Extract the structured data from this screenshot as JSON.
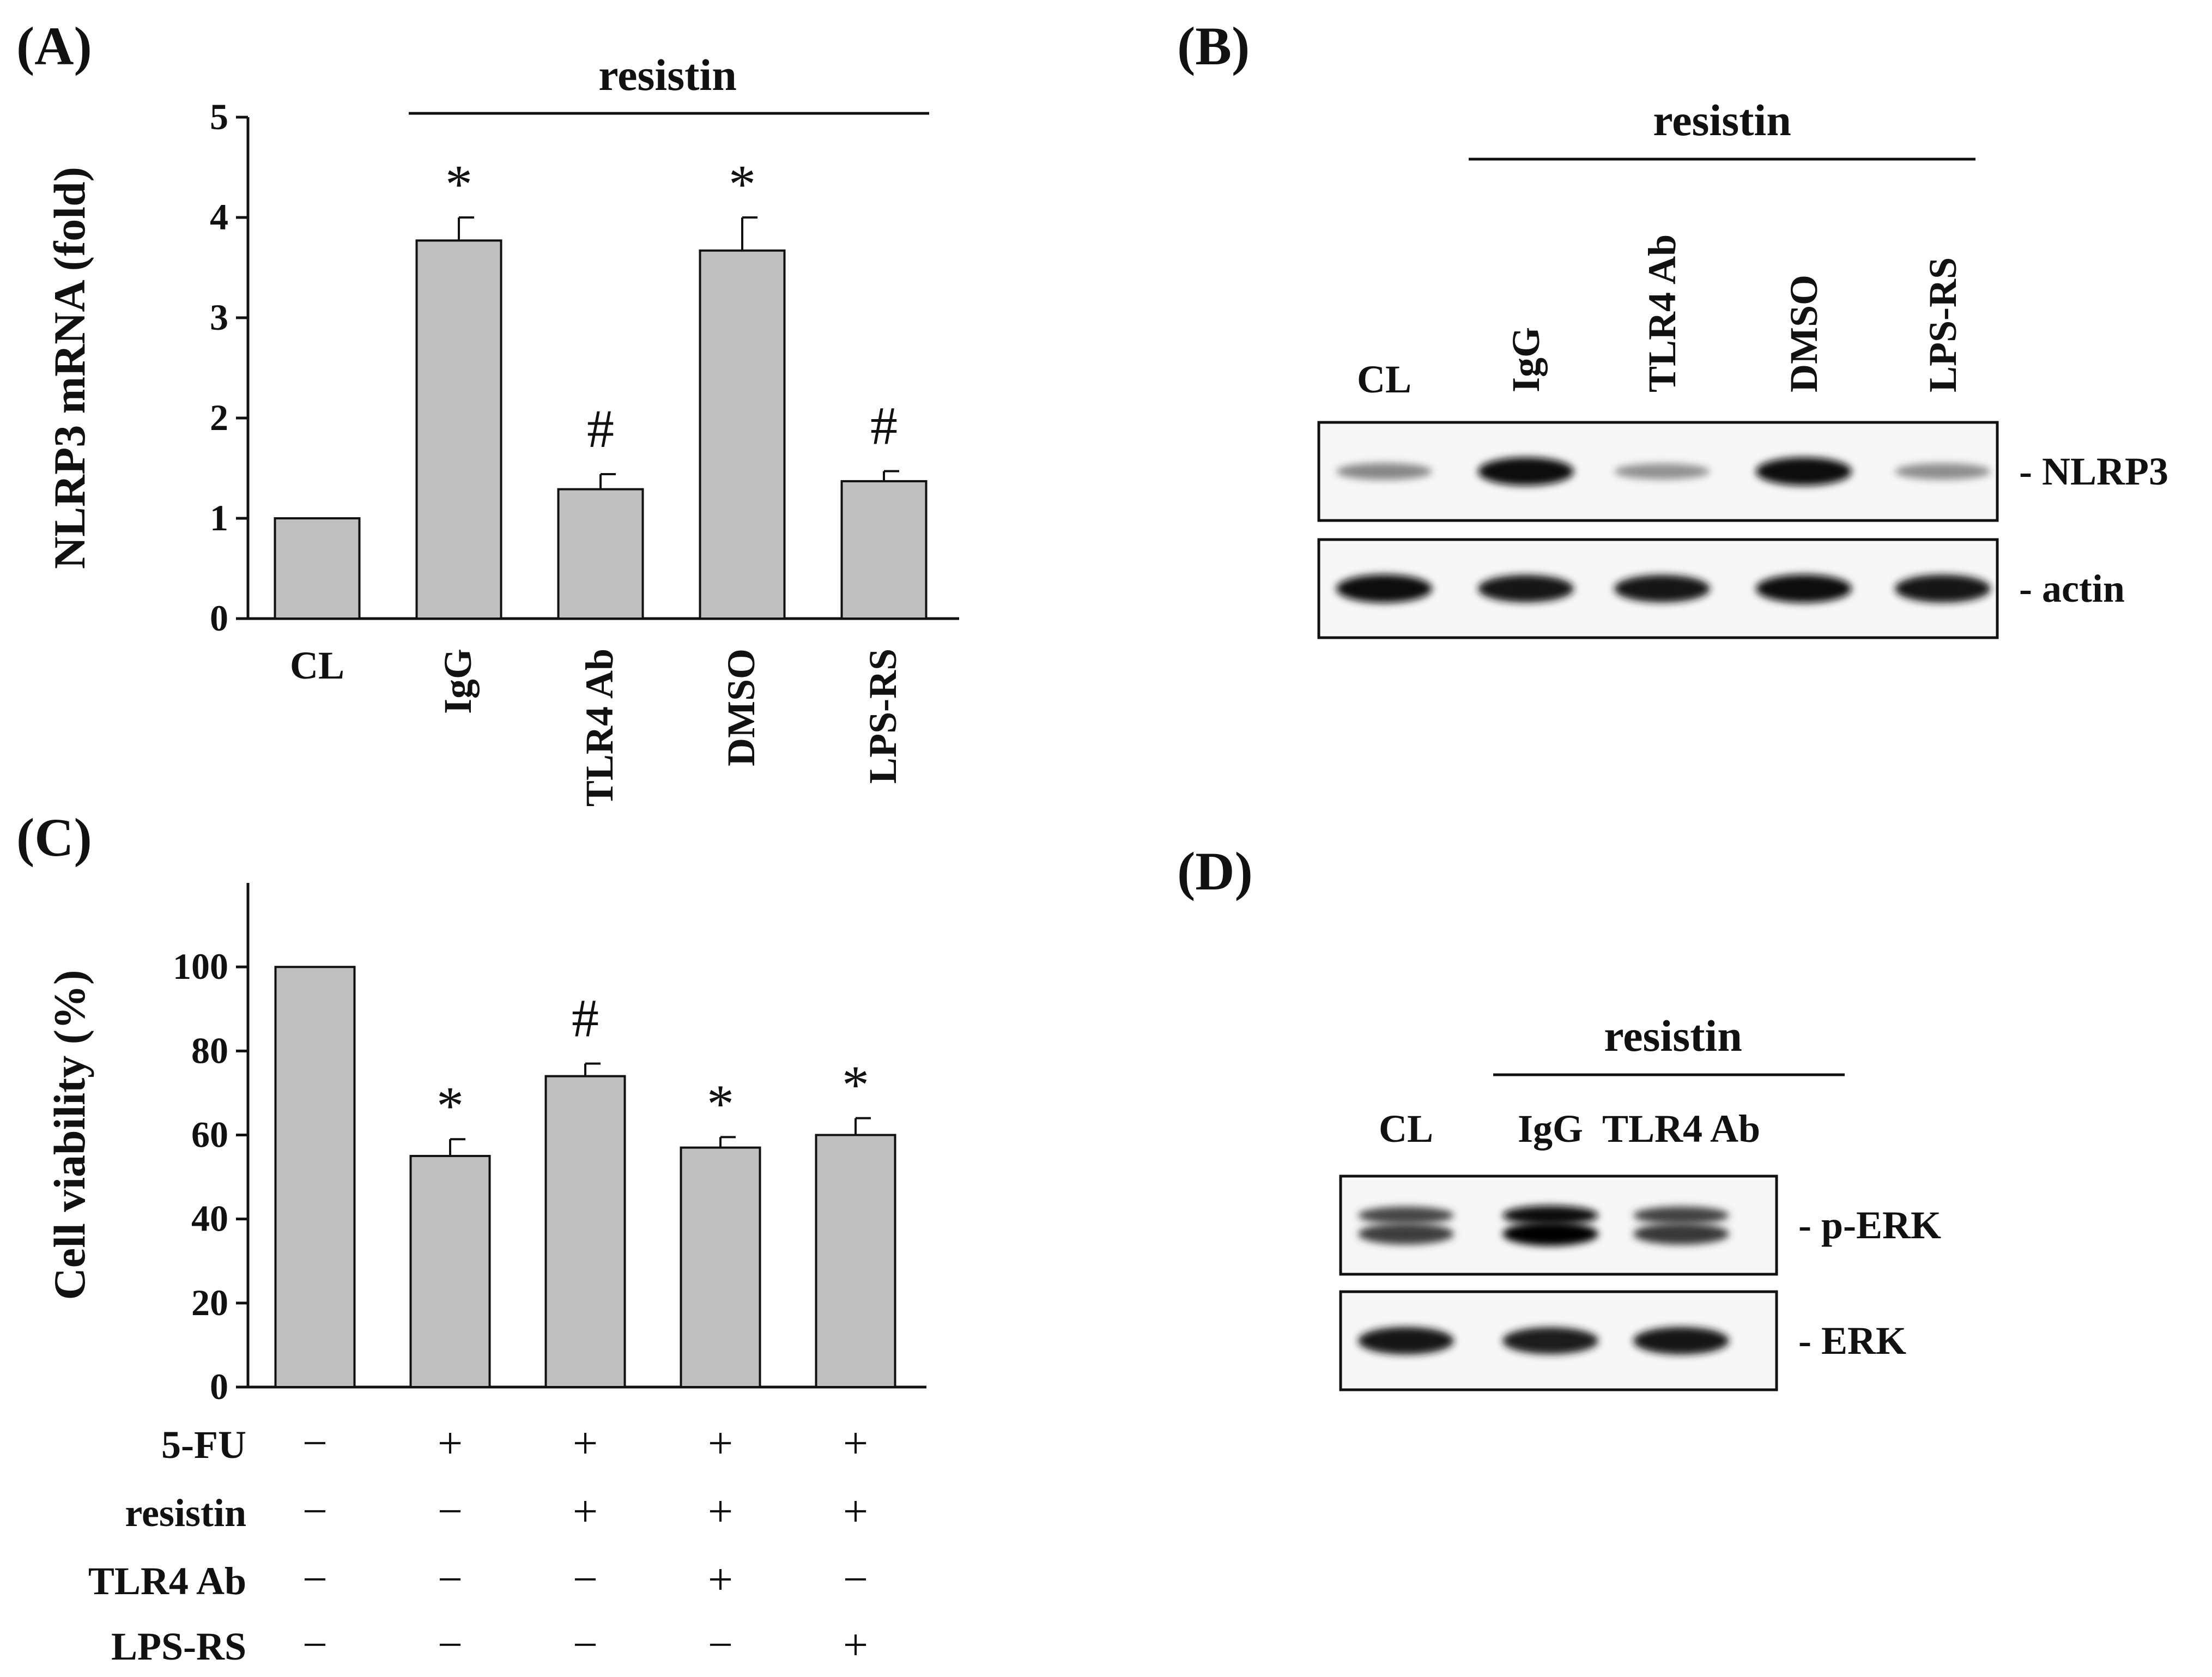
{
  "figure": {
    "panels": {
      "a": {
        "label": "(A)",
        "group_label": "resistin"
      },
      "b": {
        "label": "(B)",
        "group_label": "resistin",
        "lanes": [
          "CL",
          "IgG",
          "TLR4 Ab",
          "DMSO",
          "LPS-RS"
        ],
        "blots": [
          {
            "label": "- NLRP3",
            "intensity": [
              0.35,
              1.0,
              0.3,
              1.0,
              0.32
            ]
          },
          {
            "label": "- actin",
            "intensity": [
              1.0,
              0.95,
              0.95,
              1.0,
              0.98
            ]
          }
        ]
      },
      "c": {
        "label": "(C)",
        "treatments": [
          {
            "name": "5-FU",
            "states": [
              "−",
              "+",
              "+",
              "+",
              "+"
            ]
          },
          {
            "name": "resistin",
            "states": [
              "−",
              "−",
              "+",
              "+",
              "+"
            ]
          },
          {
            "name": "TLR4 Ab",
            "states": [
              "−",
              "−",
              "−",
              "+",
              "−"
            ]
          },
          {
            "name": "LPS-RS",
            "states": [
              "−",
              "−",
              "−",
              "−",
              "+"
            ]
          }
        ]
      },
      "d": {
        "label": "(D)",
        "group_label": "resistin",
        "lanes": [
          "CL",
          "IgG",
          "TLR4 Ab"
        ],
        "blots": [
          {
            "label": "- p-ERK",
            "intensity": [
              0.7,
              1.0,
              0.72
            ]
          },
          {
            "label": "- ERK",
            "intensity": [
              0.95,
              0.92,
              0.95
            ]
          }
        ]
      }
    }
  },
  "chart_data": [
    {
      "type": "bar",
      "categories": [
        "CL",
        "IgG",
        "TLR4 Ab",
        "DMSO",
        "LPS-RS"
      ],
      "values": [
        1.0,
        3.77,
        1.29,
        3.67,
        1.37
      ],
      "errors": [
        0,
        0.23,
        0.15,
        0.33,
        0.1
      ],
      "marks": [
        "",
        "*",
        "#",
        "*",
        "#"
      ],
      "ylabel": "NLRP3 mRNA (fold)",
      "ylim": [
        0,
        5
      ],
      "yticks": [
        0,
        1,
        2,
        3,
        4,
        5
      ],
      "bar_color": "#c0c0c0"
    },
    {
      "type": "bar",
      "categories": [
        "",
        "",
        "",
        "",
        ""
      ],
      "values": [
        100,
        55,
        74,
        57,
        60
      ],
      "errors": [
        0,
        4,
        3,
        2.5,
        4
      ],
      "marks": [
        "",
        "*",
        "#",
        "*",
        "*"
      ],
      "ylabel": "Cell viability (%)",
      "ylim": [
        0,
        120
      ],
      "yticks": [
        0,
        20,
        40,
        60,
        80,
        100
      ],
      "bar_color": "#c0c0c0"
    }
  ]
}
